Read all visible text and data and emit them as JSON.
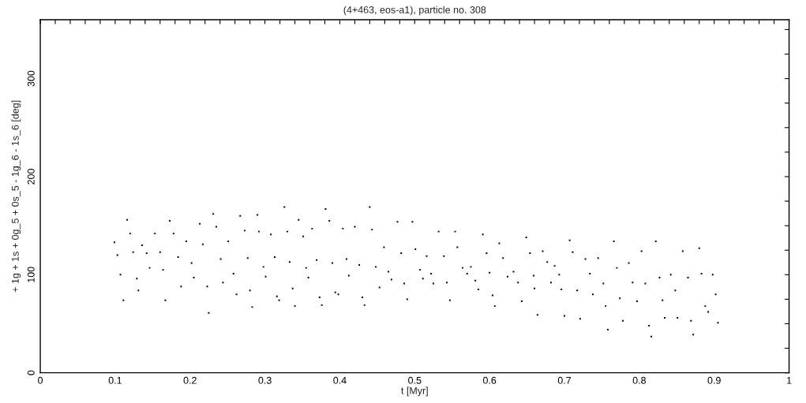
{
  "chart_data": {
    "type": "scatter",
    "title": "(4+463, eos-a1), particle no. 308",
    "xlabel": "t [Myr]",
    "ylabel": "+ 1g + 1s + 0g_5 + 0s_5 - 1g_6 - 1s_6 [deg]",
    "marker": "square",
    "xlim": [
      0,
      1
    ],
    "ylim": [
      0,
      360
    ],
    "xticks": [
      0,
      {
        "value": 0.02,
        "label": null
      },
      {
        "value": 0.04,
        "label": null
      },
      {
        "value": 0.06,
        "label": null
      },
      {
        "value": 0.08,
        "label": null
      },
      0.1,
      {
        "value": 0.12,
        "label": null
      },
      {
        "value": 0.14,
        "label": null
      },
      {
        "value": 0.16,
        "label": null
      },
      {
        "value": 0.18,
        "label": null
      },
      0.2,
      {
        "value": 0.22,
        "label": null
      },
      {
        "value": 0.24,
        "label": null
      },
      {
        "value": 0.26,
        "label": null
      },
      {
        "value": 0.28,
        "label": null
      },
      0.3,
      {
        "value": 0.32,
        "label": null
      },
      {
        "value": 0.34,
        "label": null
      },
      {
        "value": 0.36,
        "label": null
      },
      {
        "value": 0.38,
        "label": null
      },
      0.4,
      {
        "value": 0.42,
        "label": null
      },
      {
        "value": 0.44,
        "label": null
      },
      {
        "value": 0.46,
        "label": null
      },
      {
        "value": 0.48,
        "label": null
      },
      0.5,
      {
        "value": 0.52,
        "label": null
      },
      {
        "value": 0.54,
        "label": null
      },
      {
        "value": 0.56,
        "label": null
      },
      {
        "value": 0.58,
        "label": null
      },
      0.6,
      {
        "value": 0.62,
        "label": null
      },
      {
        "value": 0.64,
        "label": null
      },
      {
        "value": 0.66,
        "label": null
      },
      {
        "value": 0.68,
        "label": null
      },
      0.7,
      {
        "value": 0.72,
        "label": null
      },
      {
        "value": 0.74,
        "label": null
      },
      {
        "value": 0.76,
        "label": null
      },
      {
        "value": 0.78,
        "label": null
      },
      0.8,
      {
        "value": 0.82,
        "label": null
      },
      {
        "value": 0.84,
        "label": null
      },
      {
        "value": 0.86,
        "label": null
      },
      {
        "value": 0.88,
        "label": null
      },
      0.9,
      {
        "value": 0.92,
        "label": null
      },
      {
        "value": 0.94,
        "label": null
      },
      {
        "value": 0.96,
        "label": null
      },
      {
        "value": 0.98,
        "label": null
      },
      1
    ],
    "yticks": [
      0,
      {
        "value": 25,
        "label": null
      },
      {
        "value": 50,
        "label": null
      },
      {
        "value": 75,
        "label": null
      },
      100,
      {
        "value": 125,
        "label": null
      },
      {
        "value": 150,
        "label": null
      },
      {
        "value": 175,
        "label": null
      },
      200,
      {
        "value": 225,
        "label": null
      },
      {
        "value": 250,
        "label": null
      },
      {
        "value": 275,
        "label": null
      },
      300,
      {
        "value": 325,
        "label": null
      },
      {
        "value": 350,
        "label": null
      }
    ],
    "series": [
      {
        "color": "#000000",
        "x": [
          0.099,
          0.103,
          0.107,
          0.111,
          0.116,
          0.12,
          0.124,
          0.129,
          0.131,
          0.136,
          0.142,
          0.146,
          0.153,
          0.16,
          0.164,
          0.167,
          0.173,
          0.178,
          0.184,
          0.188,
          0.195,
          0.202,
          0.205,
          0.213,
          0.217,
          0.223,
          0.225,
          0.231,
          0.235,
          0.241,
          0.244,
          0.251,
          0.258,
          0.262,
          0.267,
          0.273,
          0.277,
          0.28,
          0.283,
          0.29,
          0.292,
          0.298,
          0.301,
          0.308,
          0.313,
          0.316,
          0.319,
          0.326,
          0.33,
          0.333,
          0.337,
          0.34,
          0.345,
          0.351,
          0.355,
          0.358,
          0.363,
          0.369,
          0.373,
          0.376,
          0.381,
          0.386,
          0.39,
          0.394,
          0.398,
          0.404,
          0.409,
          0.412,
          0.42,
          0.426,
          0.43,
          0.433,
          0.44,
          0.443,
          0.448,
          0.453,
          0.459,
          0.465,
          0.469,
          0.477,
          0.482,
          0.486,
          0.49,
          0.497,
          0.501,
          0.507,
          0.511,
          0.516,
          0.522,
          0.525,
          0.532,
          0.539,
          0.543,
          0.547,
          0.554,
          0.557,
          0.564,
          0.57,
          0.575,
          0.581,
          0.585,
          0.591,
          0.596,
          0.6,
          0.604,
          0.607,
          0.613,
          0.618,
          0.624,
          0.632,
          0.638,
          0.643,
          0.649,
          0.654,
          0.659,
          0.66,
          0.664,
          0.671,
          0.677,
          0.682,
          0.687,
          0.693,
          0.696,
          0.7,
          0.707,
          0.711,
          0.717,
          0.721,
          0.728,
          0.734,
          0.738,
          0.745,
          0.752,
          0.755,
          0.758,
          0.766,
          0.77,
          0.774,
          0.778,
          0.786,
          0.791,
          0.797,
          0.803,
          0.808,
          0.813,
          0.816,
          0.822,
          0.827,
          0.831,
          0.834,
          0.842,
          0.848,
          0.851,
          0.858,
          0.865,
          0.869,
          0.872,
          0.88,
          0.883,
          0.888,
          0.892,
          0.898,
          0.902,
          0.905
        ],
        "values": [
          133,
          120,
          100,
          74,
          156,
          142,
          123,
          96,
          84,
          130,
          122,
          107,
          142,
          123,
          105,
          74,
          155,
          142,
          118,
          88,
          134,
          112,
          97,
          152,
          131,
          88,
          61,
          162,
          149,
          116,
          92,
          134,
          101,
          80,
          160,
          145,
          117,
          84,
          67,
          161,
          144,
          108,
          98,
          141,
          118,
          78,
          74,
          169,
          144,
          113,
          86,
          68,
          156,
          139,
          107,
          97,
          147,
          115,
          77,
          69,
          167,
          155,
          112,
          82,
          80,
          147,
          116,
          99,
          149,
          110,
          77,
          69,
          169,
          146,
          108,
          87,
          128,
          103,
          95,
          154,
          122,
          91,
          75,
          154,
          126,
          105,
          96,
          119,
          101,
          91,
          144,
          119,
          92,
          74,
          144,
          128,
          107,
          101,
          108,
          94,
          85,
          141,
          122,
          102,
          79,
          68,
          132,
          117,
          98,
          103,
          92,
          73,
          138,
          122,
          99,
          86,
          59,
          124,
          113,
          92,
          109,
          100,
          85,
          58,
          135,
          123,
          84,
          55,
          116,
          101,
          80,
          117,
          91,
          68,
          44,
          134,
          107,
          76,
          53,
          112,
          92,
          73,
          124,
          91,
          48,
          37,
          134,
          97,
          74,
          56,
          100,
          84,
          56,
          124,
          97,
          53,
          39,
          127,
          101,
          68,
          62,
          100,
          80,
          51
        ]
      }
    ]
  }
}
